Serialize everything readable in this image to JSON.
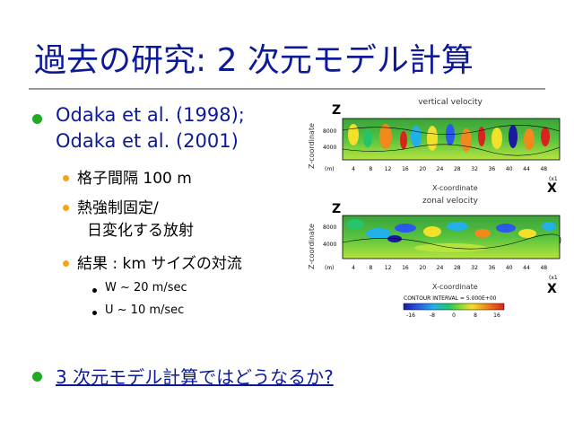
{
  "title": "過去の研究: 2 次元モデル計算",
  "bullets": {
    "refs_line1": "Odaka et al. (1998);",
    "refs_line2": "Odaka et al. (2001)",
    "sub1": "格子間隔 100 m",
    "sub2_line1": "熱強制固定/",
    "sub2_line2": "日変化する放射",
    "sub3": "結果 : km サイズの対流",
    "sub3_a": "W ~ 20 m/sec",
    "sub3_b": "U  ~ 10 m/sec",
    "question": "3 次元モデル計算ではどうなるか?"
  },
  "figure": {
    "panel1_title": "vertical velocity",
    "panel2_title": "zonal velocity",
    "z_label": "Z",
    "x_label": "X",
    "ylabel": "Z-coordinate",
    "xlabel": "X-coordinate",
    "unit_m": "(m)",
    "unit_x1": "(x1",
    "yticks": [
      "8000",
      "4000"
    ],
    "xticks": [
      "4",
      "8",
      "12",
      "16",
      "20",
      "24",
      "28",
      "32",
      "36",
      "40",
      "44",
      "48"
    ],
    "contour_interval": "CONTOUR INTERVAL = 5.000E+00",
    "colorbar_ticks": [
      "-16",
      "-8",
      "0",
      "8",
      "16"
    ]
  }
}
